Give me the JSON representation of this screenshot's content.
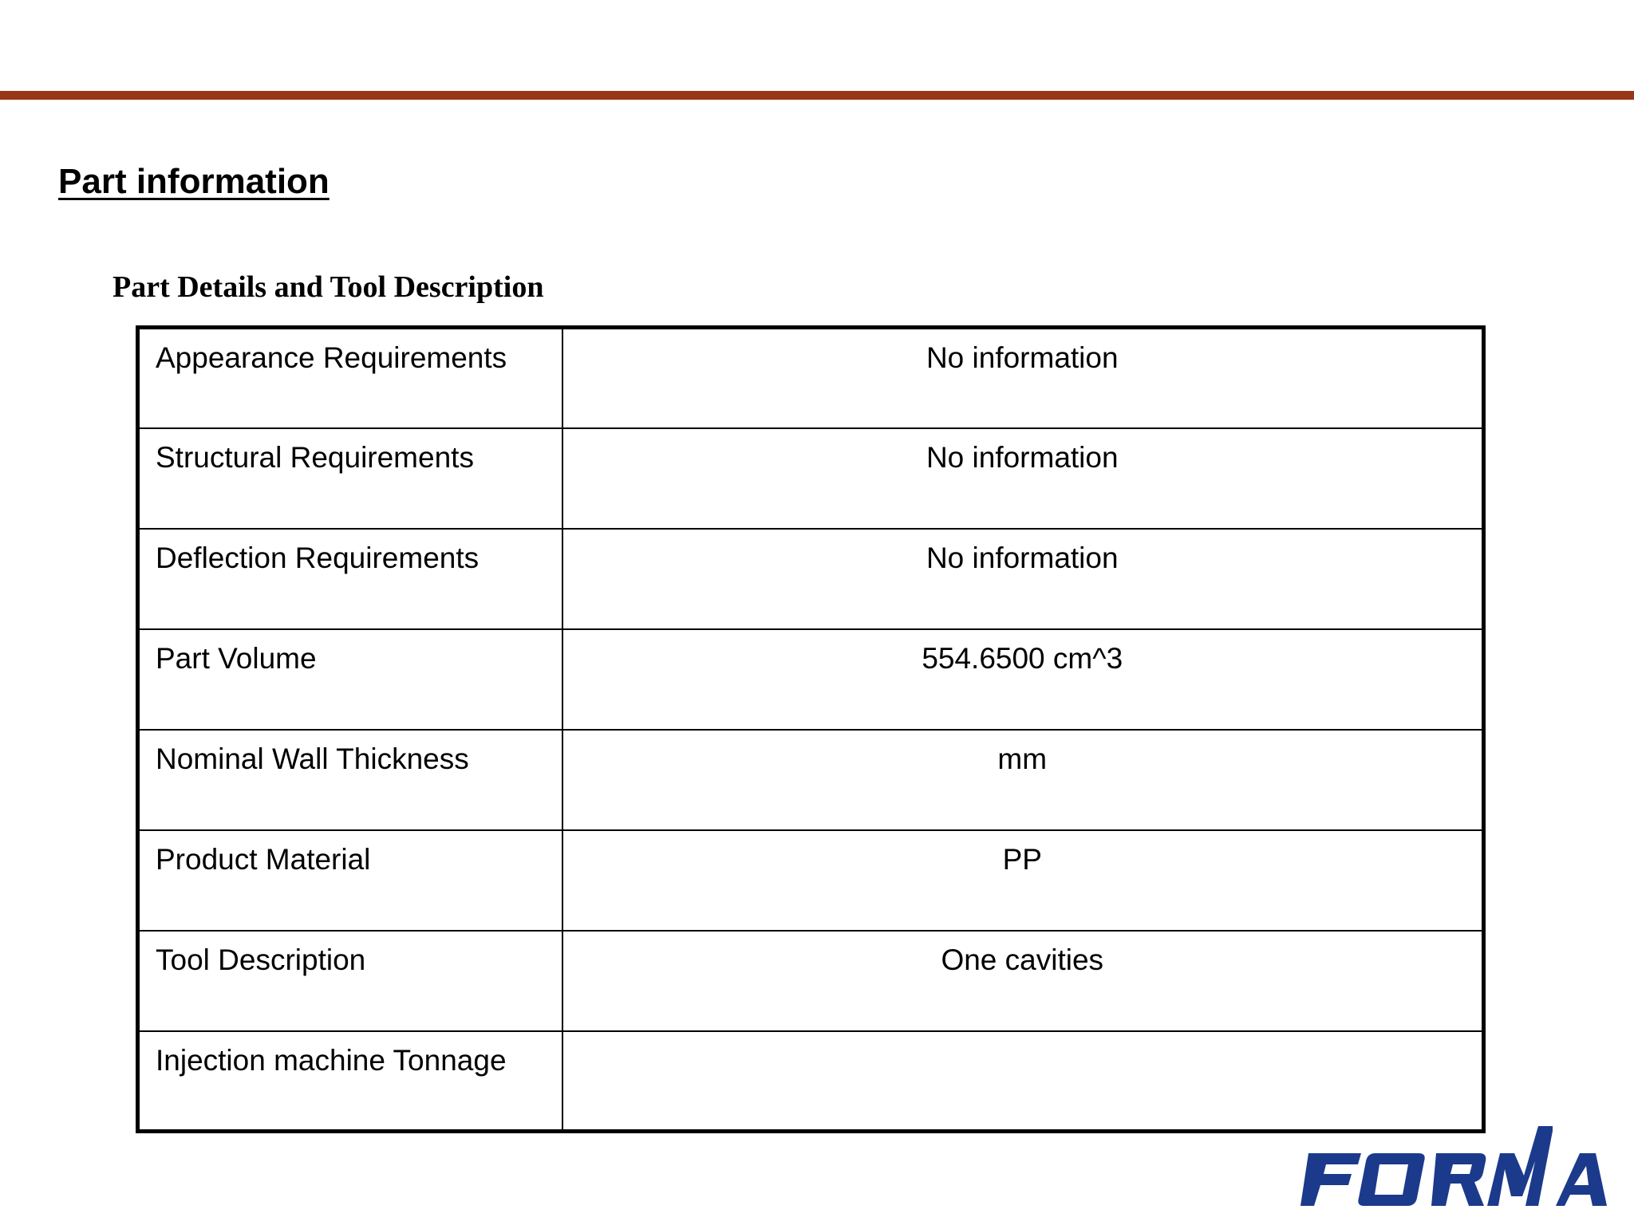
{
  "header": {
    "title": "Part information",
    "rule_color": "#983617"
  },
  "section": {
    "heading": "Part Details and Tool Description"
  },
  "table": {
    "rows": [
      {
        "label": "Appearance Requirements",
        "value": "No information"
      },
      {
        "label": "Structural Requirements",
        "value": "No information"
      },
      {
        "label": "Deflection Requirements",
        "value": "No information"
      },
      {
        "label": "Part Volume",
        "value": "554.6500 cm^3"
      },
      {
        "label": "Nominal Wall Thickness",
        "value": "mm"
      },
      {
        "label": "Product Material",
        "value": "PP"
      },
      {
        "label": "Tool Description",
        "value": "One cavities"
      },
      {
        "label": "Injection machine Tonnage",
        "value": ""
      }
    ]
  },
  "logo": {
    "text": "FORMA",
    "color": "#1c3a8c"
  }
}
